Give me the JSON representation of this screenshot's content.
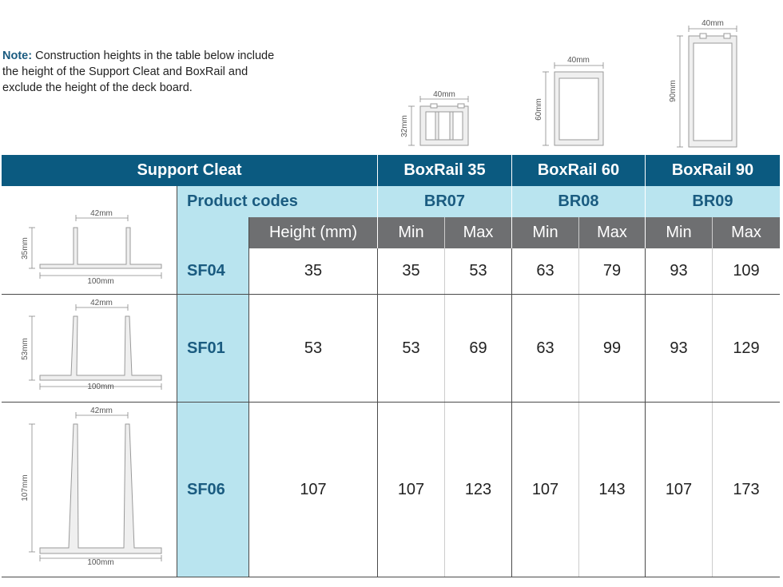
{
  "note": {
    "label": "Note:",
    "text": " Construction heights in the table below include the height of the Support Cleat and BoxRail and exclude the height of the deck board."
  },
  "rail_diagrams": [
    {
      "width": "40mm",
      "height": "32mm"
    },
    {
      "width": "40mm",
      "height": "60mm"
    },
    {
      "width": "40mm",
      "height": "90mm"
    }
  ],
  "table": {
    "support_cleat": "Support Cleat",
    "rails": [
      "BoxRail 35",
      "BoxRail 60",
      "BoxRail 90"
    ],
    "product_codes_label": "Product codes",
    "rail_codes": [
      "BR07",
      "BR08",
      "BR09"
    ],
    "height_label": "Height (mm)",
    "min_label": "Min",
    "max_label": "Max",
    "rows": [
      {
        "code": "SF04",
        "height": "35",
        "values": [
          "35",
          "53",
          "63",
          "79",
          "93",
          "109"
        ],
        "diagram": {
          "width": "42mm",
          "height": "35mm",
          "base": "100mm"
        }
      },
      {
        "code": "SF01",
        "height": "53",
        "values": [
          "53",
          "69",
          "63",
          "99",
          "93",
          "129"
        ],
        "diagram": {
          "width": "42mm",
          "height": "53mm",
          "base": "100mm"
        }
      },
      {
        "code": "SF06",
        "height": "107",
        "values": [
          "107",
          "123",
          "107",
          "143",
          "107",
          "173"
        ],
        "diagram": {
          "width": "42mm",
          "height": "107mm",
          "base": "100mm"
        }
      }
    ]
  }
}
